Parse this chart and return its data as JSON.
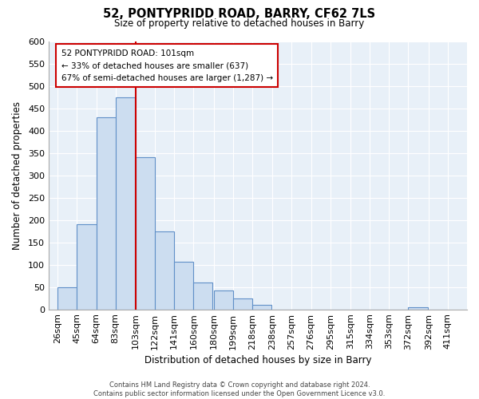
{
  "title": "52, PONTYPRIDD ROAD, BARRY, CF62 7LS",
  "subtitle": "Size of property relative to detached houses in Barry",
  "xlabel": "Distribution of detached houses by size in Barry",
  "ylabel": "Number of detached properties",
  "bar_left_edges": [
    26,
    45,
    64,
    83,
    103,
    122,
    141,
    160,
    180,
    199,
    218,
    238,
    257,
    276,
    295,
    315,
    334,
    353,
    372,
    392
  ],
  "bar_heights": [
    50,
    190,
    430,
    475,
    340,
    175,
    107,
    60,
    43,
    25,
    10,
    0,
    0,
    0,
    0,
    0,
    0,
    0,
    5,
    0
  ],
  "bin_width": 19,
  "tick_labels": [
    "26sqm",
    "45sqm",
    "64sqm",
    "83sqm",
    "103sqm",
    "122sqm",
    "141sqm",
    "160sqm",
    "180sqm",
    "199sqm",
    "218sqm",
    "238sqm",
    "257sqm",
    "276sqm",
    "295sqm",
    "315sqm",
    "334sqm",
    "353sqm",
    "372sqm",
    "392sqm",
    "411sqm"
  ],
  "tick_positions": [
    26,
    45,
    64,
    83,
    103,
    122,
    141,
    160,
    180,
    199,
    218,
    238,
    257,
    276,
    295,
    315,
    334,
    353,
    372,
    392,
    411
  ],
  "property_line_x": 103,
  "ylim": [
    0,
    600
  ],
  "xlim_left": 17,
  "xlim_right": 430,
  "yticks": [
    0,
    50,
    100,
    150,
    200,
    250,
    300,
    350,
    400,
    450,
    500,
    550,
    600
  ],
  "bar_fill_color": "#ccddf0",
  "bar_edge_color": "#6090c8",
  "property_line_color": "#cc0000",
  "annotation_text_line1": "52 PONTYPRIDD ROAD: 101sqm",
  "annotation_text_line2": "← 33% of detached houses are smaller (637)",
  "annotation_text_line3": "67% of semi-detached houses are larger (1,287) →",
  "annotation_box_facecolor": "#ffffff",
  "annotation_box_edgecolor": "#cc0000",
  "plot_bg_color": "#e8f0f8",
  "fig_bg_color": "#ffffff",
  "grid_color": "#ffffff",
  "footer_line1": "Contains HM Land Registry data © Crown copyright and database right 2024.",
  "footer_line2": "Contains public sector information licensed under the Open Government Licence v3.0."
}
